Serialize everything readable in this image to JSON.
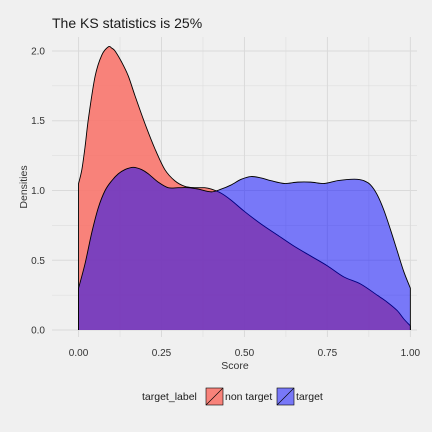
{
  "chart_data": {
    "type": "area",
    "title": "The KS statistics is 25%",
    "xlabel": "Score",
    "ylabel": "Densities",
    "xlim": [
      -0.08,
      1.02
    ],
    "ylim": [
      -0.05,
      2.1
    ],
    "x_ticks": [
      0.0,
      0.25,
      0.5,
      0.75,
      1.0
    ],
    "x_tick_labels": [
      "0.00",
      "0.25",
      "0.50",
      "0.75",
      "1.00"
    ],
    "y_ticks": [
      0.0,
      0.5,
      1.0,
      1.5,
      2.0
    ],
    "y_tick_labels": [
      "0.0",
      "0.5",
      "1.0",
      "1.5",
      "2.0"
    ],
    "grid": true,
    "legend": {
      "title": "target_label",
      "placement": "bottom",
      "entries": [
        "non target",
        "target"
      ]
    },
    "series": [
      {
        "name": "non target",
        "color": "#f8766d",
        "fill_opacity": 0.9,
        "x": [
          0.0,
          0.01,
          0.02,
          0.03,
          0.05,
          0.07,
          0.09,
          0.1,
          0.11,
          0.13,
          0.15,
          0.17,
          0.2,
          0.23,
          0.26,
          0.29,
          0.32,
          0.35,
          0.38,
          0.4,
          0.43,
          0.46,
          0.5,
          0.55,
          0.6,
          0.65,
          0.7,
          0.75,
          0.8,
          0.85,
          0.9,
          0.93,
          0.96,
          0.98,
          1.0
        ],
        "y": [
          1.05,
          1.15,
          1.32,
          1.52,
          1.82,
          1.97,
          2.03,
          2.02,
          2.0,
          1.92,
          1.82,
          1.68,
          1.48,
          1.3,
          1.15,
          1.07,
          1.03,
          1.02,
          1.02,
          1.01,
          0.98,
          0.93,
          0.85,
          0.76,
          0.68,
          0.6,
          0.53,
          0.46,
          0.38,
          0.33,
          0.25,
          0.2,
          0.14,
          0.08,
          0.03
        ]
      },
      {
        "name": "target",
        "color": "#0000ff",
        "fill_opacity": 0.5,
        "x": [
          0.0,
          0.02,
          0.04,
          0.06,
          0.08,
          0.1,
          0.12,
          0.14,
          0.16,
          0.17,
          0.19,
          0.21,
          0.24,
          0.27,
          0.3,
          0.33,
          0.36,
          0.4,
          0.43,
          0.46,
          0.49,
          0.52,
          0.55,
          0.58,
          0.62,
          0.66,
          0.7,
          0.74,
          0.78,
          0.82,
          0.84,
          0.86,
          0.88,
          0.9,
          0.92,
          0.94,
          0.96,
          0.98,
          1.0
        ],
        "y": [
          0.3,
          0.48,
          0.7,
          0.88,
          1.0,
          1.07,
          1.12,
          1.15,
          1.165,
          1.165,
          1.15,
          1.12,
          1.06,
          1.02,
          1.02,
          1.02,
          1.01,
          0.99,
          1.01,
          1.04,
          1.08,
          1.1,
          1.09,
          1.07,
          1.05,
          1.06,
          1.06,
          1.05,
          1.07,
          1.08,
          1.08,
          1.07,
          1.04,
          0.97,
          0.86,
          0.72,
          0.57,
          0.42,
          0.3
        ]
      }
    ],
    "overlap_color": "#7d38c4"
  }
}
